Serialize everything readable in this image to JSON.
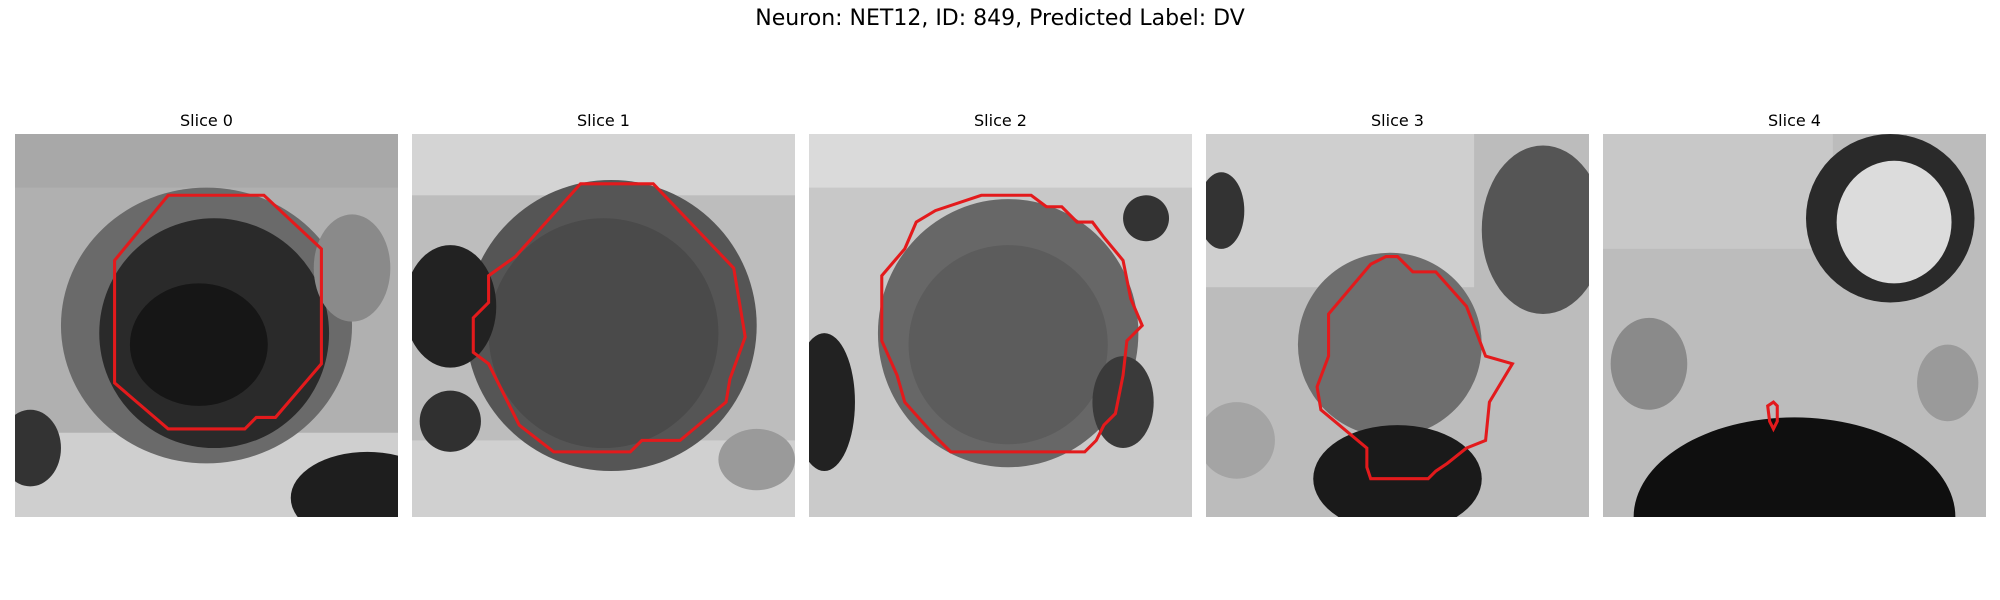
{
  "figure": {
    "title": "Neuron: NET12, ID: 849, Predicted Label: DV"
  },
  "panels": [
    {
      "title": "Slice 0"
    },
    {
      "title": "Slice 1"
    },
    {
      "title": "Slice 2"
    },
    {
      "title": "Slice 3"
    },
    {
      "title": "Slice 4"
    }
  ],
  "colors": {
    "contour": "#e31a1c",
    "background": "#ffffff"
  }
}
